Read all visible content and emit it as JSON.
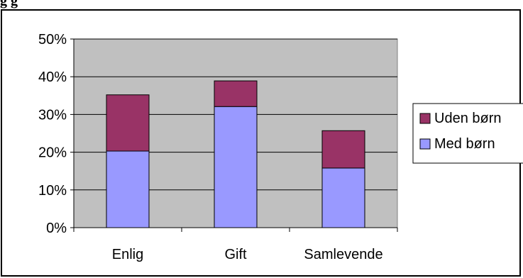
{
  "header": {
    "text": "g                                  g"
  },
  "chart_data": {
    "type": "bar",
    "stacked": true,
    "categories": [
      "Enlig",
      "Gift",
      "Samlevende"
    ],
    "series": [
      {
        "name": "Med børn",
        "values": [
          20.3,
          32.1,
          15.8
        ],
        "color": "#9999ff"
      },
      {
        "name": "Uden børn",
        "values": [
          14.9,
          6.8,
          9.9
        ],
        "color": "#993366"
      }
    ],
    "ylim": [
      0,
      50
    ],
    "yticks": [
      0,
      10,
      20,
      30,
      40,
      50
    ],
    "ytick_labels": [
      "0%",
      "10%",
      "20%",
      "30%",
      "40%",
      "50%"
    ],
    "grid": true,
    "plot_background": "#c0c0c0",
    "legend_position": "right",
    "legend_order": [
      "Uden børn",
      "Med børn"
    ]
  }
}
